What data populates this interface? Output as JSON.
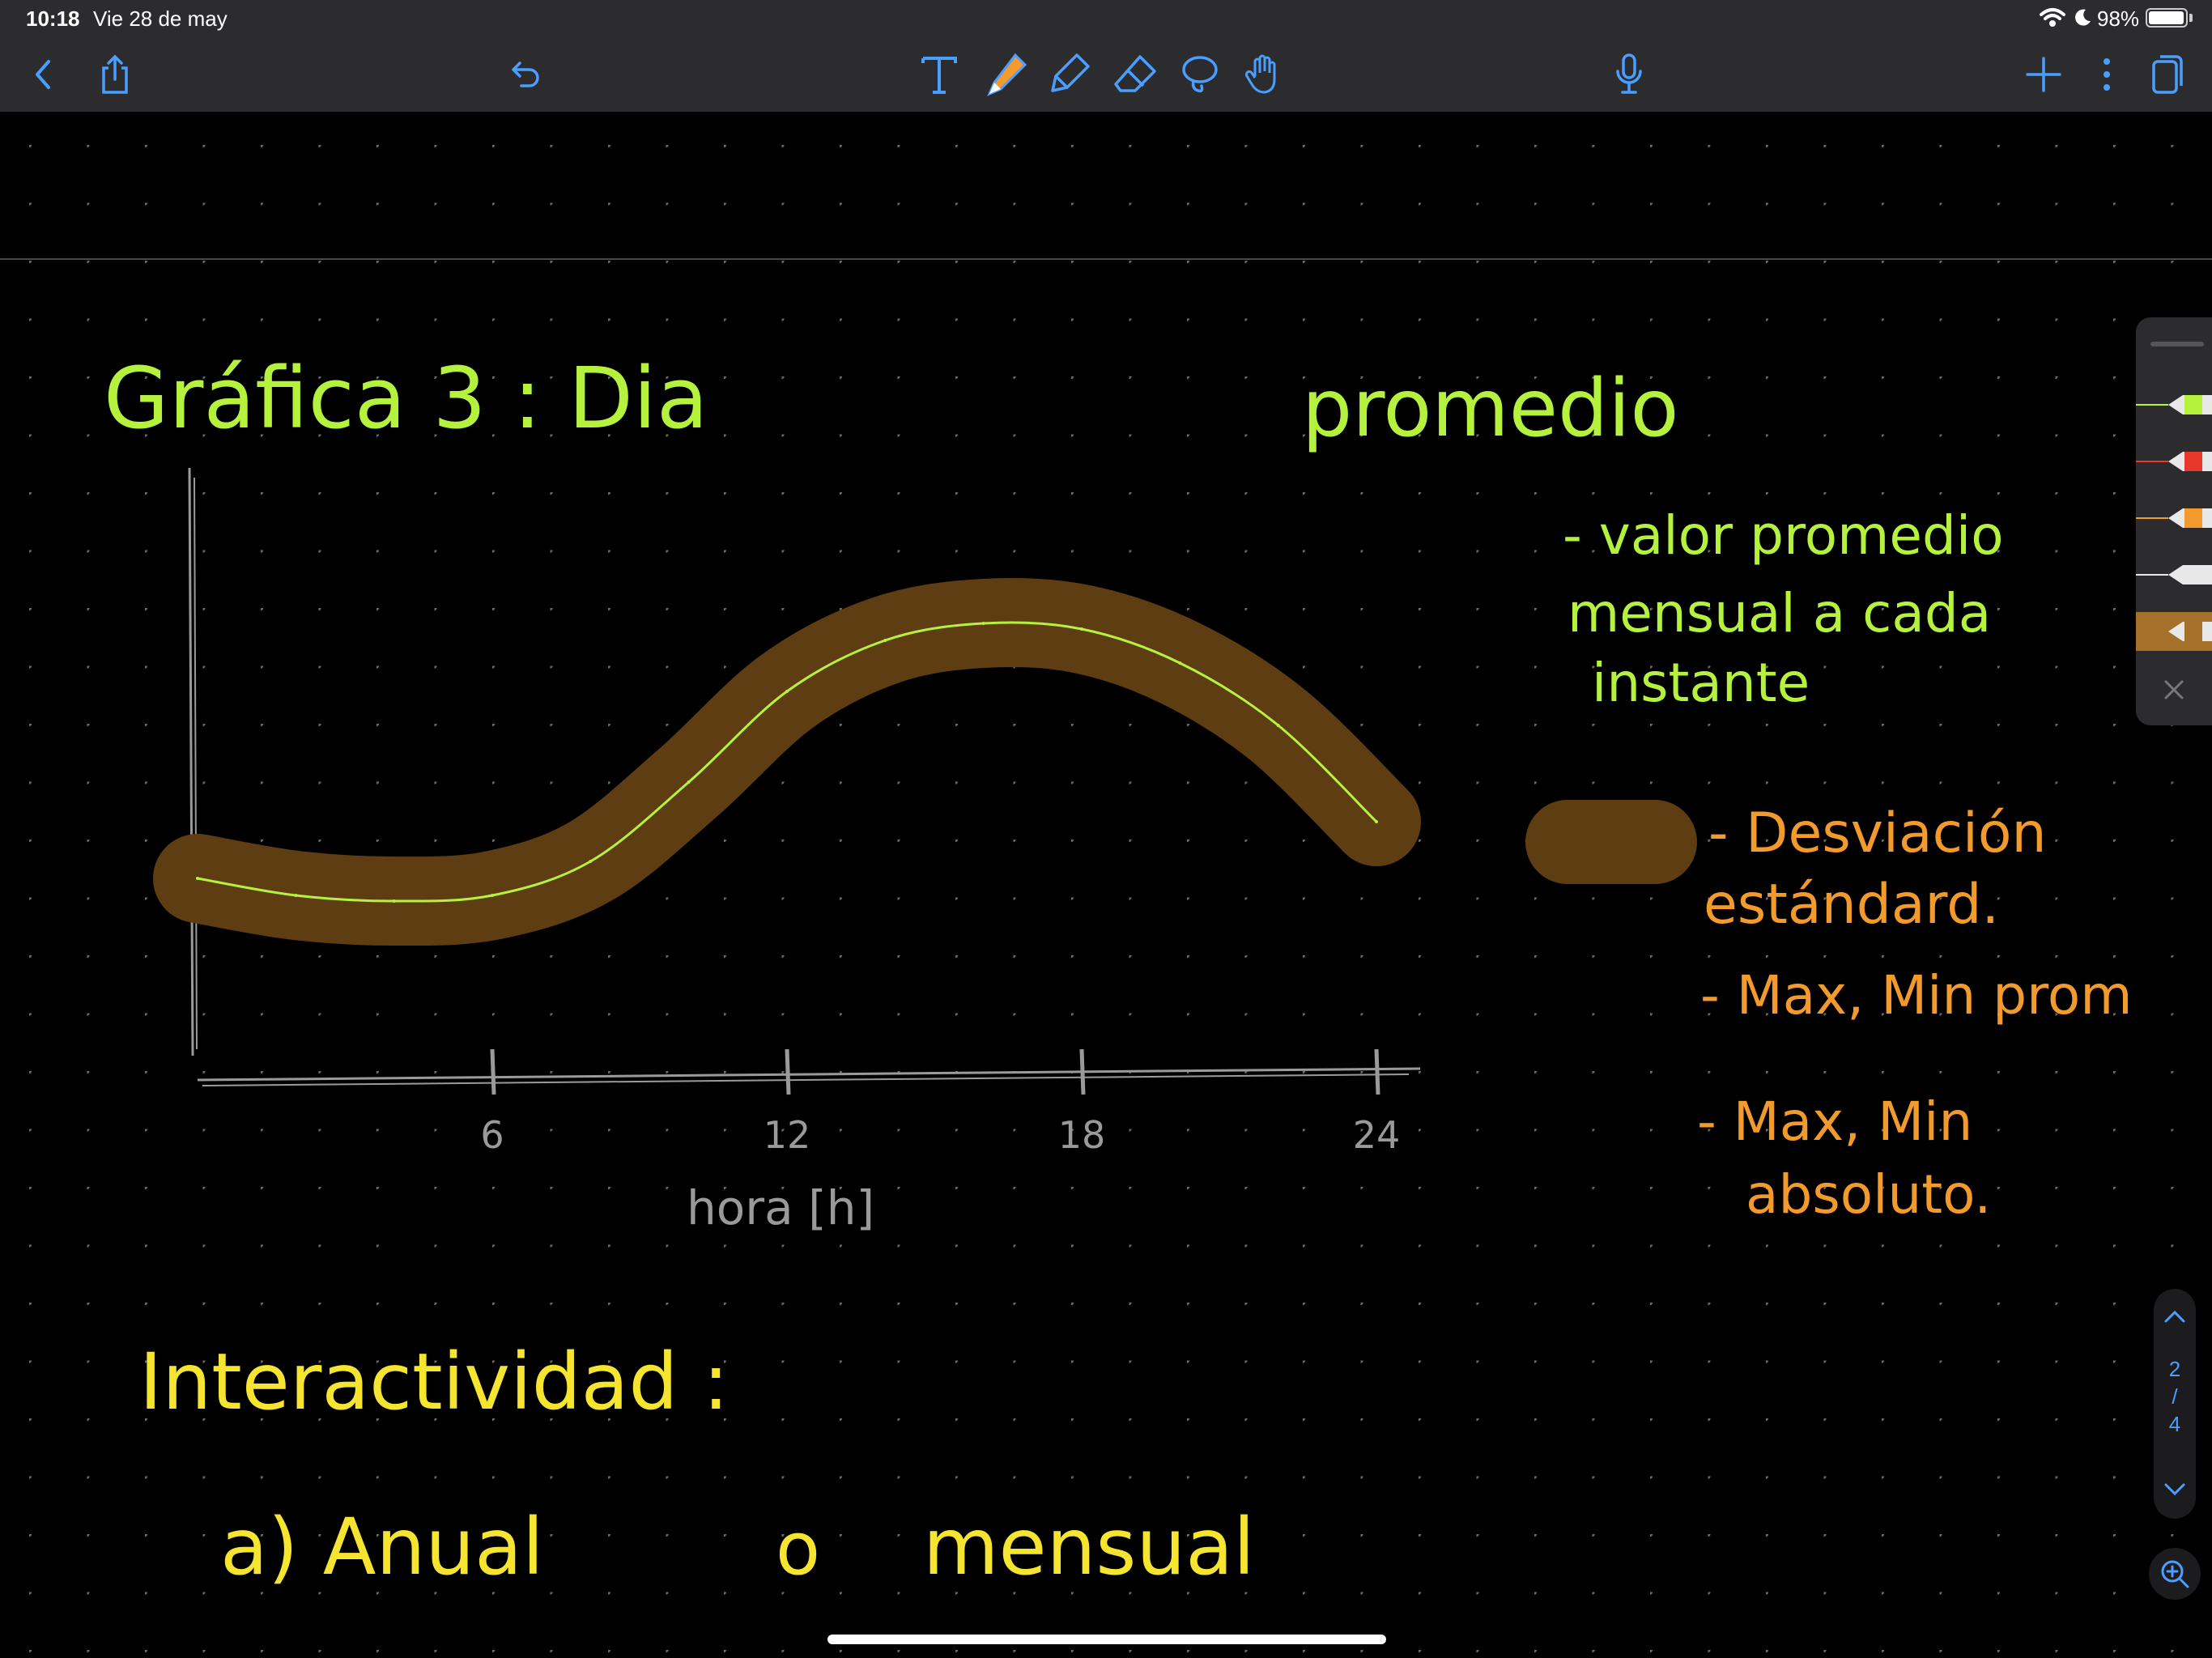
{
  "status_bar": {
    "time": "10:18",
    "date": "Vie 28 de may",
    "battery_percent": "98%",
    "battery_level": 0.98,
    "icons": [
      "wifi-icon",
      "moon-icon",
      "battery-icon"
    ]
  },
  "toolbar": {
    "left": [
      "back-icon",
      "share-icon",
      "undo-icon"
    ],
    "tools": [
      "text-tool-icon",
      "pen-tool-icon",
      "highlighter-tool-icon",
      "eraser-tool-icon",
      "lasso-tool-icon",
      "hand-tool-icon"
    ],
    "center": [
      "microphone-icon"
    ],
    "right": [
      "add-page-icon",
      "more-icon",
      "pages-icon"
    ],
    "accent": "#4a9eff"
  },
  "note": {
    "title_left": "Gráfica 3 : Dia",
    "title_right": "promedio",
    "axis_label": "hora [h]",
    "x_ticks": [
      "6",
      "12",
      "18",
      "24"
    ],
    "legend_mean": [
      "- valor promedio",
      "mensual a cada",
      "instante"
    ],
    "legend_std": [
      "- Desviación",
      "estándard."
    ],
    "legend_max_min_prom": "- Max, Min prom",
    "legend_max_min_abs": [
      "- Max, Min",
      "absoluto."
    ],
    "interactivity_title": "Interactividad :",
    "interactivity_option": [
      "a) Anual",
      "o",
      "mensual"
    ],
    "colors": {
      "green_ink": "#b5f23e",
      "orange_ink": "#f39a2c",
      "yellow_ink": "#f5e530",
      "brown_band": "#5e3d12",
      "axis_gray": "#9a9a9a"
    }
  },
  "chart_data": {
    "type": "line",
    "title": "Gráfica 3 : Dia promedio",
    "xlabel": "hora [h]",
    "ylabel": "",
    "xlim": [
      0,
      24
    ],
    "ylim": [
      0,
      10
    ],
    "x_ticks": [
      6,
      12,
      18,
      24
    ],
    "series": [
      {
        "name": "valor promedio mensual a cada instante",
        "x": [
          0,
          2,
          4,
          6,
          8,
          10,
          12,
          14,
          16,
          18,
          20,
          22,
          24
        ],
        "values": [
          3.5,
          3.2,
          3.1,
          3.2,
          3.8,
          5.2,
          6.8,
          7.7,
          8.0,
          7.9,
          7.3,
          6.2,
          4.5
        ]
      },
      {
        "name": "Desviación estándard",
        "band": true,
        "x": [
          0,
          2,
          4,
          6,
          8,
          10,
          12,
          14,
          16,
          18,
          20,
          22,
          24
        ],
        "values": [
          3.5,
          3.2,
          3.1,
          3.2,
          3.8,
          5.2,
          6.8,
          7.7,
          8.0,
          7.9,
          7.3,
          6.2,
          4.5
        ]
      }
    ]
  },
  "pen_palette": {
    "pens": [
      {
        "name": "green-pen",
        "color": "#b5f23e"
      },
      {
        "name": "red-pen",
        "color": "#e8372c"
      },
      {
        "name": "orange-pen",
        "color": "#f39a2c"
      },
      {
        "name": "white-pen",
        "color": "#e8e8e8"
      },
      {
        "name": "brown-highlighter",
        "color": "#a5712a"
      }
    ]
  },
  "page_nav": {
    "current": "2",
    "separator": "/",
    "total": "4"
  }
}
